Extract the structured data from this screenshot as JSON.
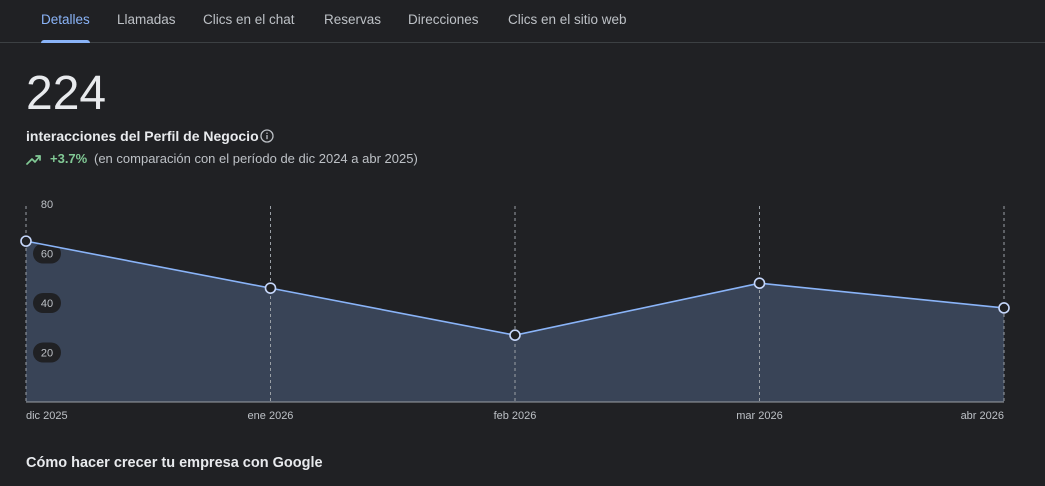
{
  "tabs": [
    {
      "label": "Detalles",
      "active": true
    },
    {
      "label": "Llamadas",
      "active": false
    },
    {
      "label": "Clics en el chat",
      "active": false
    },
    {
      "label": "Reservas",
      "active": false
    },
    {
      "label": "Direcciones",
      "active": false
    },
    {
      "label": "Clics en el sitio web",
      "active": false
    }
  ],
  "summary": {
    "total": "224",
    "label": "interacciones del Perfil de Negocio",
    "info_icon": "info-icon",
    "trend_icon": "trending-up-icon",
    "trend_percent": "+3.7%",
    "trend_text": "(en comparación con el período de dic 2024 a abr 2025)"
  },
  "colors": {
    "background": "#202124",
    "accent": "#8ab4f8",
    "area_fill": "#394457",
    "positive": "#81c995"
  },
  "chart_data": {
    "type": "area",
    "categories": [
      "dic 2025",
      "ene 2026",
      "feb 2026",
      "mar 2026",
      "abr 2026"
    ],
    "values": [
      65,
      46,
      27,
      48,
      38
    ],
    "ylim": [
      0,
      80
    ],
    "yticks": [
      20,
      40,
      60,
      80
    ],
    "grid": "vertical dashed",
    "legend": "none"
  },
  "footer": {
    "section_title": "Cómo hacer crecer tu empresa con Google"
  }
}
